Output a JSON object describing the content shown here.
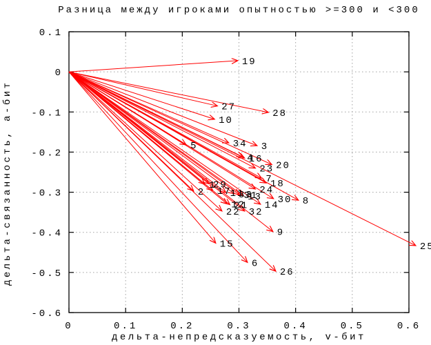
{
  "chart_data": {
    "type": "vector",
    "title": "Разница между игроками опытностью >=300 и <300",
    "xlabel": "дельта-непредсказуемость, v-бит",
    "ylabel": "дельта-связанность, а-бит",
    "xlim": [
      0,
      0.6
    ],
    "ylim": [
      -0.6,
      0.1
    ],
    "x_ticks": [
      0,
      0.1,
      0.2,
      0.3,
      0.4,
      0.5,
      0.6
    ],
    "x_tick_labels": [
      "0",
      "0.1",
      "0.2",
      "0.3",
      "0.4",
      "0.5",
      "0.6"
    ],
    "y_ticks": [
      0.1,
      0,
      -0.1,
      -0.2,
      -0.3,
      -0.4,
      -0.5,
      -0.6
    ],
    "y_tick_labels": [
      "0.1",
      "0",
      "-0.1",
      "-0.2",
      "-0.3",
      "-0.4",
      "-0.5",
      "-0.6"
    ],
    "grid": true,
    "legend": "none",
    "arrow_color": "#ff0000",
    "grid_color": "#a0a0a0",
    "axis_color": "#000000",
    "origin": [
      0,
      0
    ],
    "vectors": [
      {
        "label": "1",
        "x": 0.24,
        "y": -0.28
      },
      {
        "label": "2",
        "x": 0.22,
        "y": -0.297
      },
      {
        "label": "3",
        "x": 0.332,
        "y": -0.184
      },
      {
        "label": "4",
        "x": 0.307,
        "y": -0.212
      },
      {
        "label": "5",
        "x": 0.207,
        "y": -0.182
      },
      {
        "label": "6",
        "x": 0.315,
        "y": -0.475
      },
      {
        "label": "7",
        "x": 0.34,
        "y": -0.265
      },
      {
        "label": "8",
        "x": 0.405,
        "y": -0.32
      },
      {
        "label": "9",
        "x": 0.36,
        "y": -0.398
      },
      {
        "label": "10",
        "x": 0.257,
        "y": -0.118
      },
      {
        "label": "11",
        "x": 0.277,
        "y": -0.301
      },
      {
        "label": "12",
        "x": 0.279,
        "y": -0.329
      },
      {
        "label": "13",
        "x": 0.308,
        "y": -0.309
      },
      {
        "label": "14",
        "x": 0.338,
        "y": -0.33
      },
      {
        "label": "15",
        "x": 0.259,
        "y": -0.427
      },
      {
        "label": "16",
        "x": 0.31,
        "y": -0.215
      },
      {
        "label": "17",
        "x": 0.254,
        "y": -0.296
      },
      {
        "label": "18",
        "x": 0.348,
        "y": -0.277
      },
      {
        "label": "19",
        "x": 0.298,
        "y": 0.028
      },
      {
        "label": "20",
        "x": 0.358,
        "y": -0.231
      },
      {
        "label": "21",
        "x": 0.284,
        "y": -0.331
      },
      {
        "label": "22",
        "x": 0.27,
        "y": -0.347
      },
      {
        "label": "23",
        "x": 0.329,
        "y": -0.24
      },
      {
        "label": "24",
        "x": 0.329,
        "y": -0.292
      },
      {
        "label": "25",
        "x": 0.612,
        "y": -0.433
      },
      {
        "label": "26",
        "x": 0.365,
        "y": -0.497
      },
      {
        "label": "27",
        "x": 0.262,
        "y": -0.085
      },
      {
        "label": "28",
        "x": 0.352,
        "y": -0.101
      },
      {
        "label": "29",
        "x": 0.247,
        "y": -0.279
      },
      {
        "label": "30",
        "x": 0.361,
        "y": -0.316
      },
      {
        "label": "31",
        "x": 0.301,
        "y": -0.306
      },
      {
        "label": "32",
        "x": 0.31,
        "y": -0.347
      },
      {
        "label": "33",
        "x": 0.292,
        "y": -0.304
      },
      {
        "label": "34",
        "x": 0.282,
        "y": -0.177
      }
    ]
  }
}
